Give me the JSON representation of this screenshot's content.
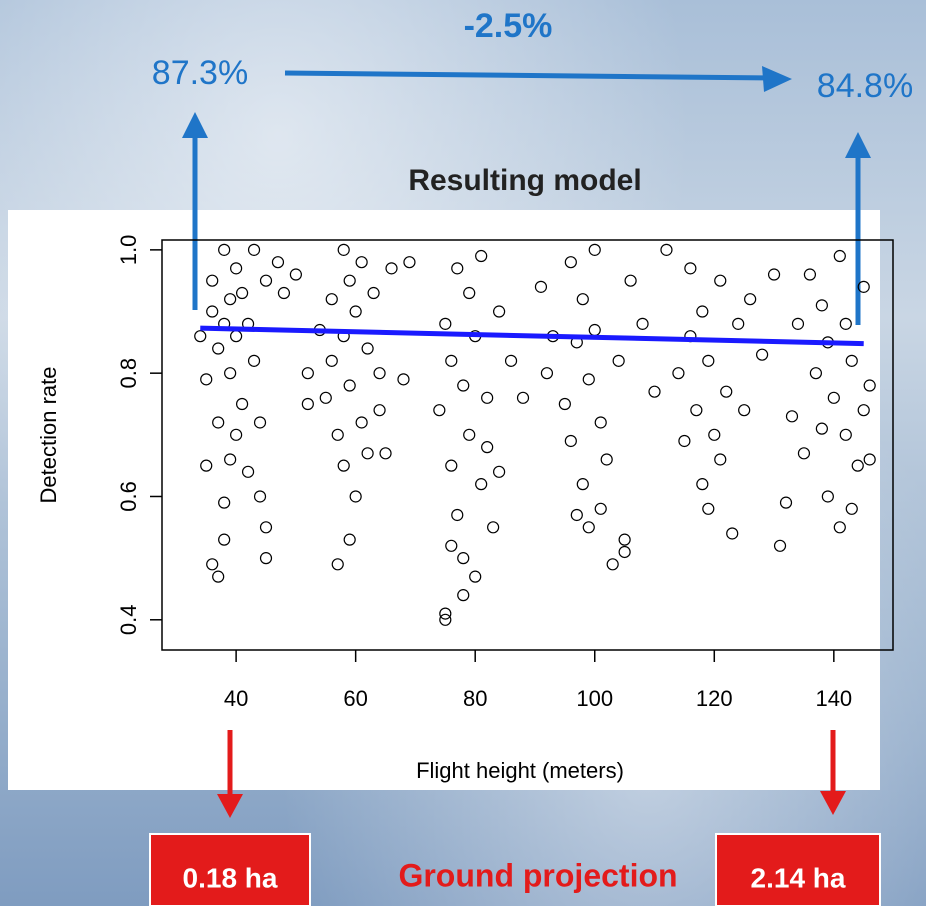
{
  "chart_data": {
    "type": "scatter",
    "title": "Resulting model",
    "xlabel": "Flight height (meters)",
    "ylabel": "Detection rate",
    "annotations": [
      "-2.5%",
      "87.3%",
      "84.8%",
      "0.18 ha",
      "Ground projection",
      "2.14 ha"
    ],
    "xlim": [
      27.6,
      149.9
    ],
    "ylim": [
      0.351,
      1.016
    ],
    "xticks": [
      40,
      60,
      80,
      100,
      120,
      140
    ],
    "yticks": [
      0.4,
      0.6,
      0.8,
      {
        "value": 1,
        "label": "1.0"
      }
    ],
    "point_color": "#000000",
    "x": [
      34,
      35,
      35,
      36,
      36,
      36,
      37,
      37,
      37,
      38,
      38,
      38,
      38,
      39,
      39,
      39,
      40,
      40,
      40,
      41,
      41,
      42,
      42,
      43,
      43,
      44,
      44,
      45,
      45,
      45,
      47,
      48,
      50,
      52,
      52,
      54,
      55,
      56,
      56,
      57,
      57,
      58,
      58,
      58,
      59,
      59,
      59,
      60,
      60,
      61,
      61,
      62,
      62,
      63,
      64,
      64,
      65,
      66,
      68,
      69,
      74,
      75,
      75,
      75,
      76,
      76,
      76,
      77,
      77,
      78,
      78,
      78,
      79,
      79,
      80,
      80,
      81,
      81,
      82,
      82,
      83,
      84,
      84,
      86,
      88,
      91,
      92,
      93,
      95,
      96,
      96,
      97,
      97,
      98,
      98,
      99,
      99,
      100,
      100,
      101,
      101,
      102,
      103,
      104,
      105,
      105,
      106,
      108,
      110,
      112,
      114,
      115,
      116,
      116,
      117,
      118,
      118,
      119,
      119,
      120,
      121,
      121,
      122,
      123,
      124,
      125,
      126,
      128,
      130,
      131,
      132,
      133,
      134,
      135,
      136,
      137,
      138,
      138,
      139,
      139,
      140,
      141,
      141,
      142,
      142,
      143,
      143,
      144,
      145,
      145,
      146,
      146
    ],
    "values": [
      0.86,
      0.65,
      0.79,
      0.9,
      0.95,
      0.49,
      0.47,
      0.84,
      0.72,
      1.0,
      0.88,
      0.59,
      0.53,
      0.92,
      0.8,
      0.66,
      0.97,
      0.86,
      0.7,
      0.93,
      0.75,
      0.88,
      0.64,
      1.0,
      0.82,
      0.6,
      0.72,
      0.5,
      0.55,
      0.95,
      0.98,
      0.93,
      0.96,
      0.75,
      0.8,
      0.87,
      0.76,
      0.82,
      0.92,
      0.49,
      0.7,
      1.0,
      0.86,
      0.65,
      0.95,
      0.78,
      0.53,
      0.9,
      0.6,
      0.98,
      0.72,
      0.84,
      0.67,
      0.93,
      0.8,
      0.74,
      0.67,
      0.97,
      0.79,
      0.98,
      0.74,
      0.88,
      0.41,
      0.4,
      0.65,
      0.82,
      0.52,
      0.57,
      0.97,
      0.78,
      0.5,
      0.44,
      0.93,
      0.7,
      0.86,
      0.47,
      0.99,
      0.62,
      0.76,
      0.68,
      0.55,
      0.9,
      0.64,
      0.82,
      0.76,
      0.94,
      0.8,
      0.86,
      0.75,
      0.98,
      0.69,
      0.85,
      0.57,
      0.92,
      0.62,
      0.79,
      0.55,
      1.0,
      0.87,
      0.72,
      0.58,
      0.66,
      0.49,
      0.82,
      0.53,
      0.51,
      0.95,
      0.88,
      0.77,
      1.0,
      0.8,
      0.69,
      0.97,
      0.86,
      0.74,
      0.9,
      0.62,
      0.58,
      0.82,
      0.7,
      0.95,
      0.66,
      0.77,
      0.54,
      0.88,
      0.74,
      0.92,
      0.83,
      0.96,
      0.52,
      0.59,
      0.73,
      0.88,
      0.67,
      0.96,
      0.8,
      0.91,
      0.71,
      0.6,
      0.85,
      0.76,
      0.99,
      0.55,
      0.88,
      0.7,
      0.58,
      0.82,
      0.65,
      0.94,
      0.74,
      0.78,
      0.66
    ],
    "model_line": {
      "color": "#1a1aff",
      "x": [
        34,
        145
      ],
      "values": [
        0.873,
        0.848
      ]
    }
  }
}
